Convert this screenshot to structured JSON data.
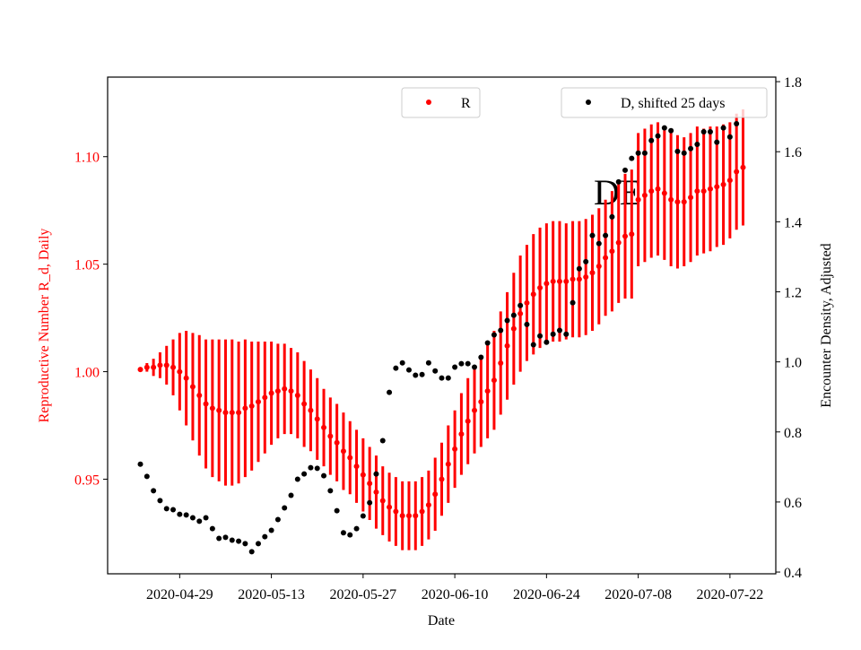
{
  "chart_data": {
    "type": "errorbar-scatter",
    "xlabel": "Date",
    "ylabel": "Reproductive Number R_d, Daily",
    "y2label": "Encounter Density, Adjusted",
    "annotations": [
      "DE"
    ],
    "x": [
      "2020-04-23",
      "2020-04-24",
      "2020-04-25",
      "2020-04-26",
      "2020-04-27",
      "2020-04-28",
      "2020-04-29",
      "2020-04-30",
      "2020-05-01",
      "2020-05-02",
      "2020-05-03",
      "2020-05-04",
      "2020-05-05",
      "2020-05-06",
      "2020-05-07",
      "2020-05-08",
      "2020-05-09",
      "2020-05-10",
      "2020-05-11",
      "2020-05-12",
      "2020-05-13",
      "2020-05-14",
      "2020-05-15",
      "2020-05-16",
      "2020-05-17",
      "2020-05-18",
      "2020-05-19",
      "2020-05-20",
      "2020-05-21",
      "2020-05-22",
      "2020-05-23",
      "2020-05-24",
      "2020-05-25",
      "2020-05-26",
      "2020-05-27",
      "2020-05-28",
      "2020-05-29",
      "2020-05-30",
      "2020-05-31",
      "2020-06-01",
      "2020-06-02",
      "2020-06-03",
      "2020-06-04",
      "2020-06-05",
      "2020-06-06",
      "2020-06-07",
      "2020-06-08",
      "2020-06-09",
      "2020-06-10",
      "2020-06-11",
      "2020-06-12",
      "2020-06-13",
      "2020-06-14",
      "2020-06-15",
      "2020-06-16",
      "2020-06-17",
      "2020-06-18",
      "2020-06-19",
      "2020-06-20",
      "2020-06-21",
      "2020-06-22",
      "2020-06-23",
      "2020-06-24",
      "2020-06-25",
      "2020-06-26",
      "2020-06-27",
      "2020-06-28",
      "2020-06-29",
      "2020-06-30",
      "2020-07-01",
      "2020-07-02",
      "2020-07-03",
      "2020-07-04",
      "2020-07-05",
      "2020-07-06",
      "2020-07-07",
      "2020-07-08",
      "2020-07-09",
      "2020-07-10",
      "2020-07-11",
      "2020-07-12",
      "2020-07-13",
      "2020-07-14",
      "2020-07-15",
      "2020-07-16",
      "2020-07-17",
      "2020-07-18",
      "2020-07-19",
      "2020-07-20",
      "2020-07-21",
      "2020-07-22",
      "2020-07-23",
      "2020-07-24"
    ],
    "xlim": [
      "2020-04-18",
      "2020-07-29"
    ],
    "xticks": [
      "2020-04-29",
      "2020-05-13",
      "2020-05-27",
      "2020-06-10",
      "2020-06-24",
      "2020-07-08",
      "2020-07-22"
    ],
    "ylim": [
      0.906,
      1.137
    ],
    "yticks": [
      0.95,
      {
        "value": 1.0,
        "label": "1.00"
      },
      1.05,
      {
        "value": 1.1,
        "label": "1.10"
      }
    ],
    "y2lim": [
      0.395,
      1.813
    ],
    "y2ticks": [
      0.4,
      0.6,
      0.8,
      {
        "value": 1.0,
        "label": "1.0"
      },
      1.2,
      1.4,
      1.6,
      1.8
    ],
    "series": [
      {
        "name": "R",
        "color": "#ff0000",
        "axis": "y",
        "legend": "upper center",
        "values": [
          1.001,
          1.002,
          1.002,
          1.003,
          1.003,
          1.002,
          1.0,
          0.997,
          0.993,
          0.989,
          0.985,
          0.983,
          0.982,
          0.981,
          0.981,
          0.981,
          0.983,
          0.984,
          0.986,
          0.988,
          0.99,
          0.991,
          0.992,
          0.991,
          0.989,
          0.985,
          0.982,
          0.978,
          0.974,
          0.97,
          0.967,
          0.963,
          0.96,
          0.956,
          0.952,
          0.948,
          0.944,
          0.94,
          0.937,
          0.935,
          0.933,
          0.933,
          0.933,
          0.935,
          0.938,
          0.943,
          0.95,
          0.957,
          0.964,
          0.971,
          0.977,
          0.982,
          0.986,
          0.991,
          0.996,
          1.004,
          1.012,
          1.02,
          1.027,
          1.032,
          1.036,
          1.039,
          1.041,
          1.042,
          1.042,
          1.042,
          1.043,
          1.043,
          1.044,
          1.046,
          1.049,
          1.053,
          1.056,
          1.06,
          1.063,
          1.064,
          1.08,
          1.082,
          1.084,
          1.085,
          1.083,
          1.08,
          1.079,
          1.079,
          1.081,
          1.084,
          1.084,
          1.085,
          1.086,
          1.087,
          1.089,
          1.093,
          1.095
        ],
        "errors": [
          0.001,
          0.002,
          0.004,
          0.006,
          0.009,
          0.013,
          0.018,
          0.022,
          0.025,
          0.028,
          0.03,
          0.032,
          0.033,
          0.034,
          0.034,
          0.033,
          0.032,
          0.03,
          0.028,
          0.026,
          0.024,
          0.022,
          0.021,
          0.02,
          0.02,
          0.02,
          0.019,
          0.019,
          0.018,
          0.018,
          0.018,
          0.018,
          0.017,
          0.017,
          0.017,
          0.017,
          0.017,
          0.016,
          0.016,
          0.016,
          0.016,
          0.016,
          0.016,
          0.016,
          0.016,
          0.017,
          0.017,
          0.018,
          0.018,
          0.019,
          0.02,
          0.02,
          0.021,
          0.022,
          0.023,
          0.024,
          0.025,
          0.026,
          0.027,
          0.027,
          0.028,
          0.028,
          0.028,
          0.028,
          0.028,
          0.027,
          0.027,
          0.027,
          0.027,
          0.027,
          0.027,
          0.027,
          0.028,
          0.028,
          0.029,
          0.03,
          0.031,
          0.031,
          0.031,
          0.031,
          0.031,
          0.031,
          0.031,
          0.03,
          0.03,
          0.03,
          0.029,
          0.029,
          0.028,
          0.028,
          0.027,
          0.027,
          0.027
        ]
      },
      {
        "name": "D, shifted 25 days",
        "color": "#000000",
        "axis": "y2",
        "legend": "upper right",
        "values": [
          0.708,
          0.673,
          0.632,
          0.604,
          0.581,
          0.578,
          0.565,
          0.563,
          0.555,
          0.545,
          0.555,
          0.524,
          0.496,
          0.499,
          0.491,
          0.488,
          0.481,
          0.458,
          0.481,
          0.501,
          0.519,
          0.55,
          0.583,
          0.619,
          0.665,
          0.68,
          0.698,
          0.696,
          0.675,
          0.632,
          0.575,
          0.512,
          0.506,
          0.524,
          0.56,
          0.598,
          0.68,
          0.775,
          0.913,
          0.982,
          0.997,
          0.977,
          0.962,
          0.964,
          0.997,
          0.974,
          0.954,
          0.954,
          0.985,
          0.995,
          0.995,
          0.985,
          1.013,
          1.054,
          1.077,
          1.09,
          1.118,
          1.133,
          1.161,
          1.107,
          1.049,
          1.074,
          1.056,
          1.079,
          1.09,
          1.079,
          1.169,
          1.266,
          1.286,
          1.361,
          1.338,
          1.361,
          1.414,
          1.514,
          1.547,
          1.581,
          1.596,
          1.596,
          1.632,
          1.645,
          1.668,
          1.66,
          1.601,
          1.596,
          1.609,
          1.621,
          1.657,
          1.657,
          1.627,
          1.668,
          1.642,
          1.68,
          null
        ]
      }
    ]
  }
}
